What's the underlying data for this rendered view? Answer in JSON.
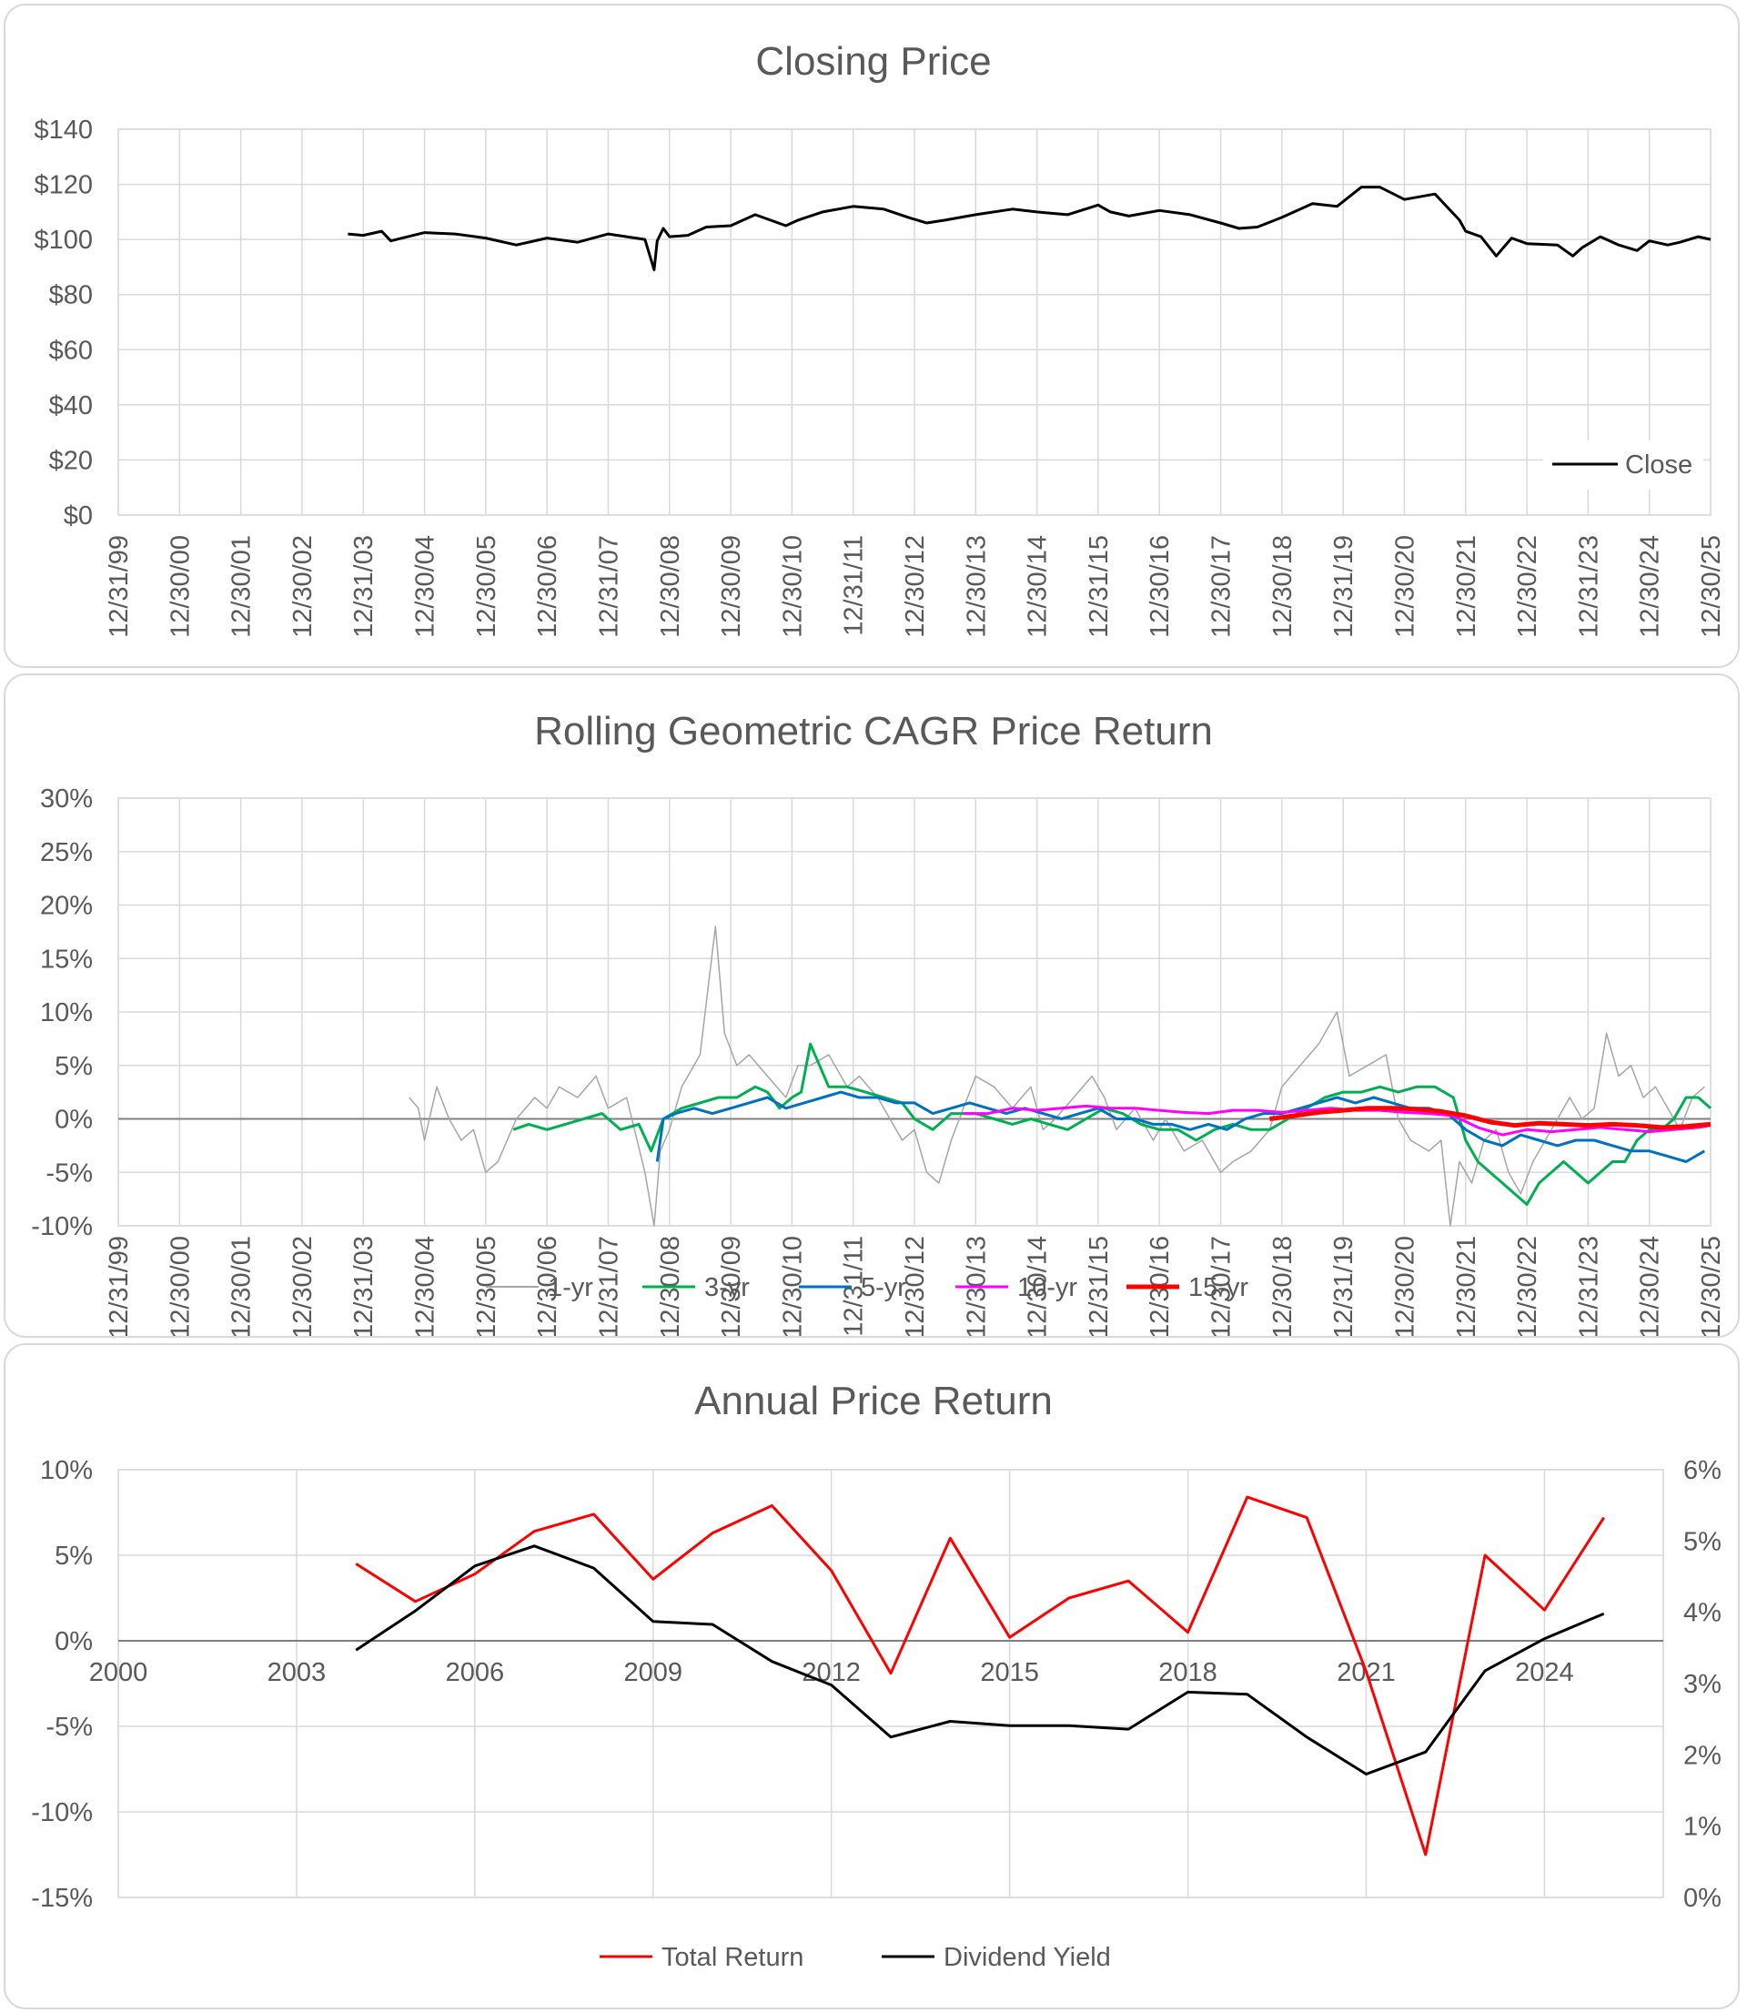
{
  "date_labels": [
    "12/31/99",
    "12/30/00",
    "12/30/01",
    "12/30/02",
    "12/31/03",
    "12/30/04",
    "12/30/05",
    "12/30/06",
    "12/31/07",
    "12/30/08",
    "12/30/09",
    "12/30/10",
    "12/31/11",
    "12/30/12",
    "12/30/13",
    "12/30/14",
    "12/31/15",
    "12/30/16",
    "12/30/17",
    "12/30/18",
    "12/31/19",
    "12/30/20",
    "12/30/21",
    "12/30/22",
    "12/31/23",
    "12/30/24",
    "12/30/25"
  ],
  "chart_data": [
    {
      "type": "line",
      "title": "Closing Price",
      "y_ticks": [
        "$140",
        "$120",
        "$100",
        "$80",
        "$60",
        "$40",
        "$20",
        "$0"
      ],
      "ylim": [
        0,
        140
      ],
      "xlim": [
        2000.0,
        2026.0
      ],
      "legend": "bottom-right",
      "series": [
        {
          "name": "Close",
          "color": "#000000",
          "x": [
            2003.75,
            2004.0,
            2004.3,
            2004.45,
            2005.0,
            2005.5,
            2006.0,
            2006.5,
            2007.0,
            2007.5,
            2008.0,
            2008.6,
            2008.75,
            2008.8,
            2008.9,
            2009.0,
            2009.3,
            2009.6,
            2010.0,
            2010.4,
            2010.9,
            2011.1,
            2011.5,
            2012.0,
            2012.5,
            2012.9,
            2013.2,
            2013.5,
            2014.0,
            2014.6,
            2015.0,
            2015.5,
            2016.0,
            2016.2,
            2016.5,
            2017.0,
            2017.5,
            2018.0,
            2018.3,
            2018.6,
            2019.0,
            2019.5,
            2019.9,
            2020.3,
            2020.6,
            2021.0,
            2021.5,
            2021.9,
            2022.0,
            2022.25,
            2022.5,
            2022.75,
            2023.0,
            2023.5,
            2023.75,
            2023.9,
            2024.2,
            2024.5,
            2024.8,
            2025.0,
            2025.3,
            2025.5,
            2025.8,
            2026.0
          ],
          "y": [
            102,
            101.5,
            103,
            99.5,
            102.5,
            102,
            100.5,
            98,
            100.5,
            99,
            102,
            100,
            89,
            99.5,
            104,
            101,
            101.5,
            104.5,
            105,
            109,
            105,
            107,
            110,
            112,
            111,
            108,
            106,
            107,
            109,
            111,
            110,
            109,
            112.5,
            110,
            108.5,
            110.5,
            109,
            106,
            104,
            104.5,
            108,
            113,
            112,
            119,
            119,
            114.5,
            116.5,
            107,
            103,
            101,
            94,
            100.5,
            98.5,
            98,
            94,
            97,
            101,
            98,
            96,
            99.5,
            98,
            99,
            101,
            100
          ]
        }
      ]
    },
    {
      "type": "line",
      "title": "Rolling Geometric CAGR Price Return",
      "y_ticks": [
        "30%",
        "25%",
        "20%",
        "15%",
        "10%",
        "5%",
        "0%",
        "-5%",
        "-10%"
      ],
      "ylim": [
        -10,
        30
      ],
      "xlim": [
        2000.0,
        2026.0
      ],
      "legend": "bottom",
      "series": [
        {
          "name": "1-yr",
          "color": "#a6a6a6",
          "x": [
            2004.75,
            2004.9,
            2005.0,
            2005.2,
            2005.4,
            2005.6,
            2005.8,
            2006.0,
            2006.2,
            2006.5,
            2006.8,
            2007.0,
            2007.2,
            2007.5,
            2007.8,
            2008.0,
            2008.3,
            2008.6,
            2008.75,
            2008.85,
            2009.0,
            2009.2,
            2009.5,
            2009.75,
            2009.9,
            2010.1,
            2010.3,
            2010.6,
            2010.9,
            2011.1,
            2011.3,
            2011.6,
            2011.9,
            2012.1,
            2012.4,
            2012.6,
            2012.8,
            2013.0,
            2013.2,
            2013.4,
            2013.6,
            2014.0,
            2014.3,
            2014.6,
            2014.9,
            2015.1,
            2015.3,
            2015.6,
            2015.9,
            2016.1,
            2016.3,
            2016.6,
            2016.9,
            2017.1,
            2017.4,
            2017.7,
            2018.0,
            2018.2,
            2018.5,
            2018.8,
            2019.0,
            2019.3,
            2019.6,
            2019.9,
            2020.1,
            2020.4,
            2020.7,
            2020.9,
            2021.1,
            2021.4,
            2021.6,
            2021.75,
            2021.9,
            2022.1,
            2022.3,
            2022.5,
            2022.7,
            2022.9,
            2023.1,
            2023.3,
            2023.5,
            2023.7,
            2023.9,
            2024.1,
            2024.3,
            2024.5,
            2024.7,
            2024.9,
            2025.1,
            2025.3,
            2025.5,
            2025.7,
            2025.9
          ],
          "y": [
            2,
            1,
            -2,
            3,
            0,
            -2,
            -1,
            -5,
            -4,
            0,
            2,
            1,
            3,
            2,
            4,
            1,
            2,
            -5,
            -10,
            -3,
            -1,
            3,
            6,
            18,
            8,
            5,
            6,
            4,
            2,
            5,
            5,
            6,
            3,
            4,
            2,
            0,
            -2,
            -1,
            -5,
            -6,
            -2,
            4,
            3,
            1,
            3,
            -1,
            0,
            2,
            4,
            2,
            -1,
            1,
            -2,
            0,
            -3,
            -2,
            -5,
            -4,
            -3,
            -1,
            3,
            5,
            7,
            10,
            4,
            5,
            6,
            0,
            -2,
            -3,
            -2,
            -10,
            -4,
            -6,
            -2,
            -1,
            -5,
            -7,
            -4,
            -2,
            0,
            2,
            0,
            1,
            8,
            4,
            5,
            2,
            3,
            1,
            -1,
            2,
            3
          ]
        },
        {
          "name": "3-yr",
          "color": "#00b050",
          "x": [
            2006.45,
            2006.7,
            2007.0,
            2007.3,
            2007.6,
            2007.9,
            2008.2,
            2008.5,
            2008.7,
            2008.9,
            2009.2,
            2009.5,
            2009.8,
            2010.1,
            2010.4,
            2010.6,
            2010.8,
            2011.0,
            2011.15,
            2011.3,
            2011.6,
            2011.9,
            2012.2,
            2012.5,
            2012.8,
            2013.0,
            2013.3,
            2013.6,
            2014.0,
            2014.3,
            2014.6,
            2014.9,
            2015.2,
            2015.5,
            2015.8,
            2016.1,
            2016.4,
            2016.7,
            2017.0,
            2017.3,
            2017.6,
            2017.9,
            2018.2,
            2018.5,
            2018.8,
            2019.1,
            2019.4,
            2019.7,
            2020.0,
            2020.3,
            2020.6,
            2020.9,
            2021.2,
            2021.5,
            2021.8,
            2022.0,
            2022.2,
            2022.4,
            2022.6,
            2022.8,
            2023.0,
            2023.2,
            2023.4,
            2023.6,
            2023.8,
            2024.0,
            2024.2,
            2024.4,
            2024.6,
            2024.8,
            2025.0,
            2025.2,
            2025.4,
            2025.6,
            2025.8,
            2026.0
          ],
          "y": [
            -1,
            -0.5,
            -1,
            -0.5,
            0,
            0.5,
            -1,
            -0.5,
            -3,
            0,
            1,
            1.5,
            2,
            2,
            3,
            2.5,
            1,
            2,
            2.5,
            7,
            3,
            3,
            2.5,
            2,
            1.5,
            0,
            -1,
            0.5,
            0.5,
            0,
            -0.5,
            0,
            -0.5,
            -1,
            0,
            1,
            0.5,
            -0.5,
            -1,
            -1,
            -2,
            -1,
            -0.5,
            -1,
            -1,
            0,
            1,
            2,
            2.5,
            2.5,
            3,
            2.5,
            3,
            3,
            2,
            -2,
            -4,
            -5,
            -6,
            -7,
            -8,
            -6,
            -5,
            -4,
            -5,
            -6,
            -5,
            -4,
            -4,
            -2,
            -1,
            -1,
            0,
            2,
            2,
            1
          ]
        },
        {
          "name": "5-yr",
          "color": "#0070c0",
          "x": [
            2008.8,
            2008.9,
            2009.1,
            2009.4,
            2009.7,
            2010.0,
            2010.3,
            2010.6,
            2010.9,
            2011.2,
            2011.5,
            2011.8,
            2012.1,
            2012.4,
            2012.7,
            2013.0,
            2013.3,
            2013.6,
            2013.9,
            2014.2,
            2014.5,
            2014.8,
            2015.1,
            2015.4,
            2015.7,
            2016.0,
            2016.3,
            2016.6,
            2016.9,
            2017.2,
            2017.5,
            2017.8,
            2018.1,
            2018.4,
            2018.7,
            2019.0,
            2019.3,
            2019.6,
            2019.9,
            2020.2,
            2020.5,
            2020.8,
            2021.1,
            2021.4,
            2021.7,
            2022.0,
            2022.3,
            2022.6,
            2022.9,
            2023.2,
            2023.5,
            2023.8,
            2024.1,
            2024.4,
            2024.7,
            2025.0,
            2025.3,
            2025.6,
            2025.9
          ],
          "y": [
            -4,
            0,
            0.5,
            1,
            0.5,
            1,
            1.5,
            2,
            1,
            1.5,
            2,
            2.5,
            2,
            2,
            1.5,
            1.5,
            0.5,
            1,
            1.5,
            1,
            0.5,
            1,
            0.5,
            0,
            0.5,
            1,
            0,
            0,
            -0.5,
            -0.5,
            -1,
            -0.5,
            -1,
            0,
            0.5,
            0.5,
            1,
            1.5,
            2,
            1.5,
            2,
            1.5,
            1,
            1,
            0.5,
            -1,
            -2,
            -2.5,
            -1.5,
            -2,
            -2.5,
            -2,
            -2,
            -2.5,
            -3,
            -3,
            -3.5,
            -4,
            -3
          ]
        },
        {
          "name": "10-yr",
          "color": "#ff00ff",
          "x": [
            2013.8,
            2014.2,
            2014.6,
            2015.0,
            2015.4,
            2015.8,
            2016.2,
            2016.6,
            2017.0,
            2017.4,
            2017.8,
            2018.2,
            2018.6,
            2019.0,
            2019.4,
            2019.8,
            2020.2,
            2020.6,
            2021.0,
            2021.4,
            2021.8,
            2022.2,
            2022.6,
            2023.0,
            2023.4,
            2023.8,
            2024.2,
            2024.6,
            2025.0,
            2025.4,
            2025.8,
            2026.0
          ],
          "y": [
            0.5,
            0.5,
            1,
            0.8,
            1,
            1.2,
            1,
            1,
            0.8,
            0.6,
            0.5,
            0.8,
            0.8,
            0.6,
            0.8,
            1,
            0.8,
            0.8,
            0.6,
            0.5,
            0.3,
            -0.8,
            -1.5,
            -1,
            -1.2,
            -1,
            -0.8,
            -1,
            -1.2,
            -1,
            -0.8,
            -0.6
          ]
        },
        {
          "name": "15-yr",
          "color": "#ff0000",
          "x": [
            2018.8,
            2019.2,
            2019.6,
            2020.0,
            2020.4,
            2020.8,
            2021.2,
            2021.6,
            2022.0,
            2022.4,
            2022.8,
            2023.2,
            2023.6,
            2024.0,
            2024.4,
            2024.8,
            2025.2,
            2025.6,
            2026.0
          ],
          "y": [
            0,
            0.3,
            0.6,
            0.8,
            1,
            1,
            0.9,
            0.7,
            0.3,
            -0.3,
            -0.6,
            -0.4,
            -0.5,
            -0.6,
            -0.5,
            -0.6,
            -0.8,
            -0.7,
            -0.5
          ]
        }
      ]
    },
    {
      "type": "line",
      "title": "Annual Price Return",
      "x_ticks": [
        "2000",
        "2003",
        "2006",
        "2009",
        "2012",
        "2015",
        "2018",
        "2021",
        "2024"
      ],
      "y_ticks": [
        "10%",
        "5%",
        "0%",
        "-5%",
        "-10%",
        "-15%"
      ],
      "y2_ticks": [
        "6%",
        "5%",
        "4%",
        "3%",
        "2%",
        "1%",
        "0%"
      ],
      "ylim": [
        -15,
        10
      ],
      "y2lim": [
        0,
        6
      ],
      "xlim": [
        2000,
        2026
      ],
      "legend": "bottom",
      "series": [
        {
          "name": "Total Return",
          "color": "#ff0000",
          "axis": "left",
          "x": [
            2004,
            2005,
            2006,
            2007,
            2008,
            2009,
            2010,
            2011,
            2012,
            2013,
            2014,
            2015,
            2016,
            2017,
            2018,
            2019,
            2020,
            2021,
            2022,
            2023,
            2024,
            2025
          ],
          "y": [
            4.5,
            2.3,
            3.9,
            6.4,
            7.4,
            3.6,
            6.3,
            7.9,
            4.1,
            -1.9,
            6.0,
            0.2,
            2.5,
            3.5,
            0.5,
            8.4,
            7.2,
            -1.8,
            -12.5,
            5.0,
            1.8,
            7.2
          ]
        },
        {
          "name": "Dividend Yield",
          "color": "#000000",
          "axis": "right",
          "x": [
            2004,
            2005,
            2006,
            2007,
            2008,
            2009,
            2010,
            2011,
            2012,
            2013,
            2014,
            2015,
            2016,
            2017,
            2018,
            2019,
            2020,
            2021,
            2022,
            2023,
            2024,
            2025
          ],
          "y": [
            3.47,
            4.02,
            4.65,
            4.93,
            4.62,
            3.87,
            3.83,
            3.31,
            2.98,
            2.25,
            2.47,
            2.41,
            2.41,
            2.36,
            2.88,
            2.85,
            2.25,
            1.73,
            2.04,
            3.18,
            3.63,
            3.98
          ]
        }
      ]
    }
  ]
}
